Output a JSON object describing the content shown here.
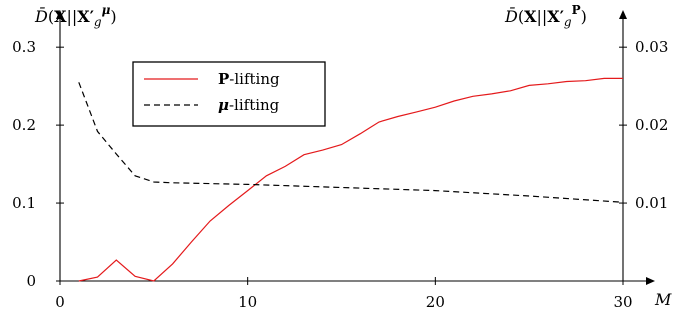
{
  "chart_data": {
    "type": "line",
    "xlabel": "M",
    "ylabel_left": "D̄(X||X′g^μ)",
    "ylabel_right": "D̄(X||X′g^P)",
    "xlim": [
      0,
      30
    ],
    "ylim_left": [
      0,
      0.34
    ],
    "ylim_right": [
      0,
      0.034
    ],
    "x_ticks": [
      0,
      10,
      20,
      30
    ],
    "x_tick_labels": [
      "0",
      "10",
      "20",
      "30"
    ],
    "y_left_ticks": [
      0,
      0.1,
      0.2,
      0.3
    ],
    "y_left_tick_labels": [
      "0",
      "0.1",
      "0.2",
      "0.3"
    ],
    "y_right_ticks": [
      0.01,
      0.02,
      0.03
    ],
    "y_right_tick_labels": [
      "0.01",
      "0.02",
      "0.03"
    ],
    "legend_position": "upper-left",
    "grid": false,
    "series": [
      {
        "name": "P-lifting",
        "name_bold": "P",
        "name_suffix": "-lifting",
        "color": "#e41a1c",
        "dash": "solid",
        "axis": "left",
        "x": [
          1,
          2,
          3,
          4,
          5,
          6,
          7,
          8,
          9,
          10,
          11,
          12,
          13,
          14,
          15,
          16,
          17,
          18,
          19,
          20,
          21,
          22,
          23,
          24,
          25,
          26,
          27,
          28,
          29,
          30
        ],
        "y": [
          0.0,
          0.005,
          0.027,
          0.006,
          0.0,
          0.022,
          0.05,
          0.077,
          0.097,
          0.116,
          0.135,
          0.147,
          0.162,
          0.168,
          0.175,
          0.189,
          0.204,
          0.211,
          0.217,
          0.223,
          0.231,
          0.237,
          0.24,
          0.244,
          0.251,
          0.253,
          0.256,
          0.257,
          0.26,
          0.26
        ]
      },
      {
        "name": "μ-lifting",
        "name_bold": "μ",
        "name_suffix": "-lifting",
        "color": "#000000",
        "dash": "dashed",
        "axis": "right",
        "x": [
          1,
          2,
          3,
          4,
          5,
          6,
          10,
          15,
          20,
          25,
          30
        ],
        "y": [
          0.0255,
          0.0192,
          0.0163,
          0.0135,
          0.0127,
          0.0126,
          0.0124,
          0.012,
          0.0116,
          0.0109,
          0.0101
        ]
      }
    ]
  }
}
